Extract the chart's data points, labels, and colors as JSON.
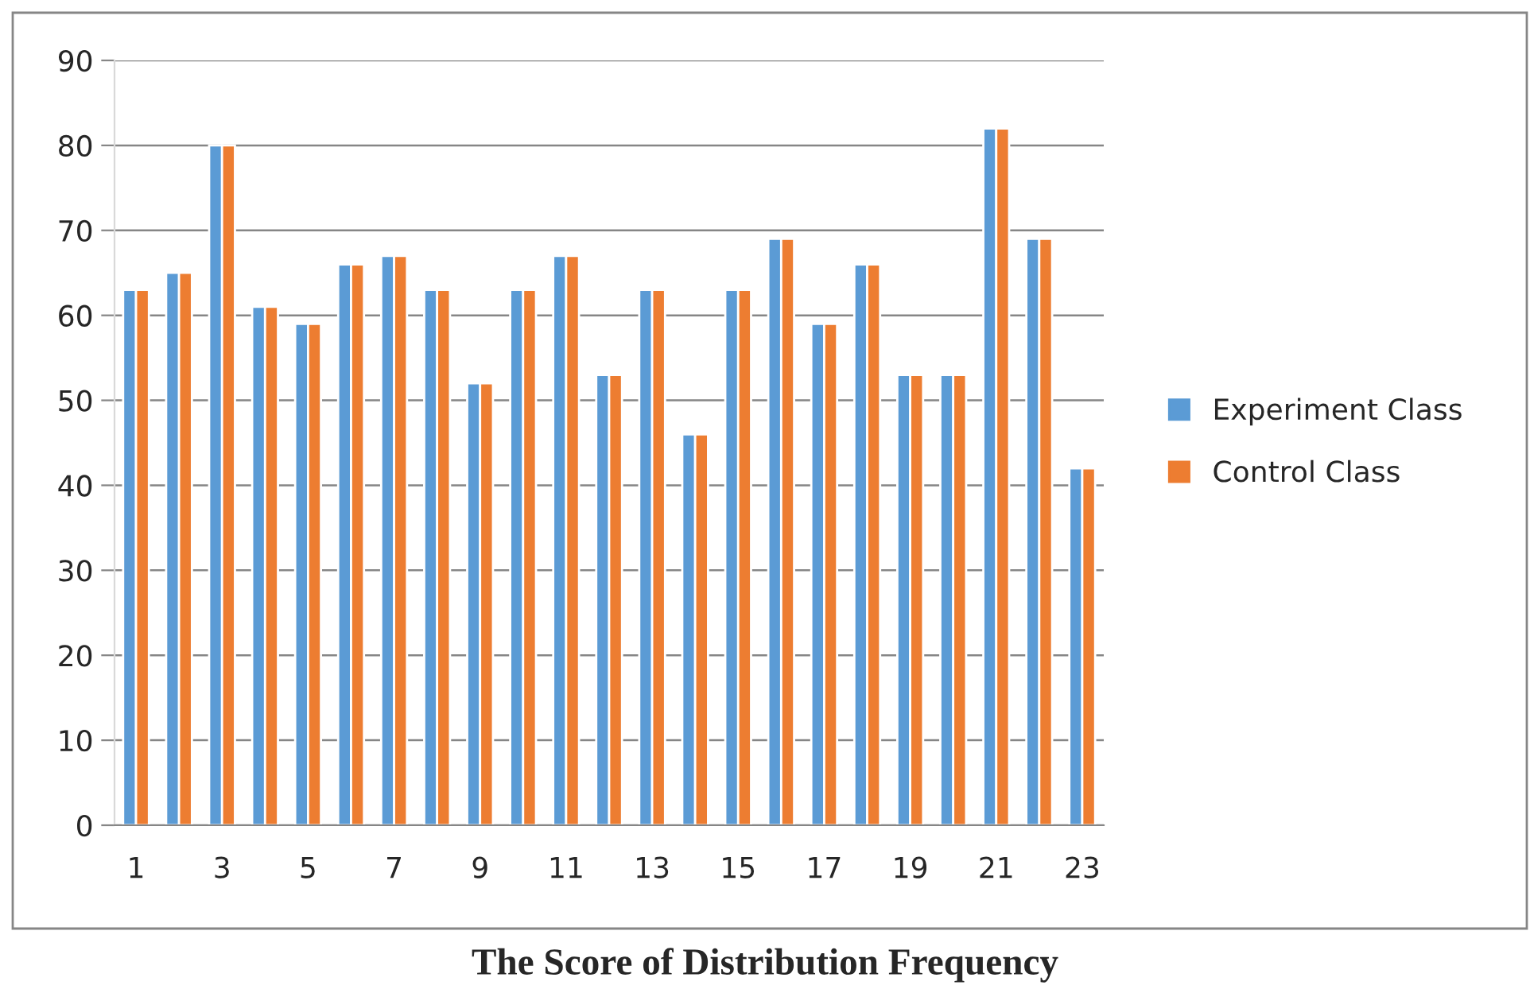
{
  "chart_data": {
    "type": "bar",
    "title": "The Score of Distribution Frequency",
    "categories": [
      "1",
      null,
      "3",
      null,
      "5",
      null,
      "7",
      null,
      "9",
      null,
      "11",
      null,
      "13",
      null,
      "15",
      null,
      "17",
      null,
      "19",
      null,
      "21",
      null,
      "23"
    ],
    "series": [
      {
        "name": "Experiment Class",
        "color": "#5b9bd5",
        "values": [
          63,
          65,
          80,
          61,
          59,
          66,
          67,
          63,
          52,
          63,
          67,
          53,
          63,
          46,
          63,
          69,
          59,
          66,
          53,
          53,
          82,
          69,
          42
        ]
      },
      {
        "name": "Control Class",
        "color": "#ed7d31",
        "values": [
          63,
          65,
          80,
          61,
          59,
          66,
          67,
          63,
          52,
          63,
          67,
          53,
          63,
          46,
          63,
          69,
          59,
          66,
          53,
          53,
          82,
          69,
          42
        ]
      }
    ],
    "ylim": [
      0,
      90
    ],
    "yticks": [
      0,
      10,
      20,
      30,
      40,
      50,
      60,
      70,
      80,
      90
    ],
    "grid": "y",
    "legend": "right"
  }
}
